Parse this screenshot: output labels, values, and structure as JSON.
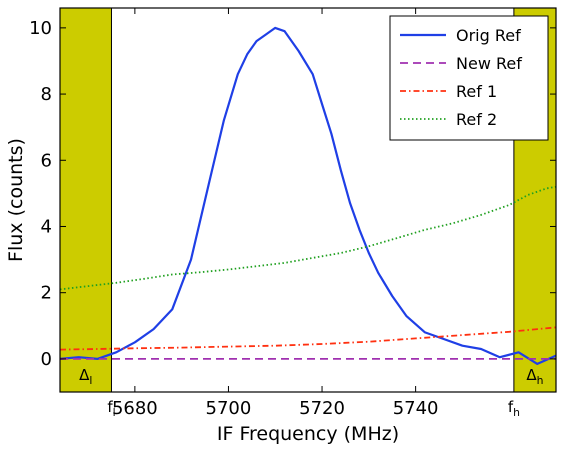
{
  "chart_data": {
    "type": "line",
    "title": "",
    "xlabel": "IF Frequency (MHz)",
    "ylabel": "Flux (counts)",
    "xlim": [
      5664,
      5770
    ],
    "ylim": [
      -1,
      10.6
    ],
    "x_ticks": [
      5680,
      5700,
      5720,
      5740
    ],
    "x_tick_labels": [
      "5680",
      "5700",
      "5720",
      "5740"
    ],
    "y_ticks": [
      0,
      2,
      4,
      6,
      8,
      10
    ],
    "y_tick_labels": [
      "0",
      "2",
      "4",
      "6",
      "8",
      "10"
    ],
    "grid": false,
    "legend_position": "top-right",
    "colors": {
      "band": "#cccc00",
      "orig_ref": "#1f3fe6",
      "new_ref": "#a030b0",
      "ref1": "#ff3010",
      "ref2": "#20a020"
    },
    "bands": [
      {
        "x0": 5664,
        "x1": 5675,
        "label_base": "Δ",
        "label_sub": "l"
      },
      {
        "x0": 5761,
        "x1": 5770,
        "label_base": "Δ",
        "label_sub": "h"
      }
    ],
    "markers": [
      {
        "x": 5675,
        "label_base": "f",
        "label_sub": "l"
      },
      {
        "x": 5761,
        "label_base": "f",
        "label_sub": "h"
      }
    ],
    "series": [
      {
        "name": "Orig Ref",
        "style": "solid",
        "x": [
          5664,
          5668,
          5672,
          5676,
          5680,
          5684,
          5688,
          5692,
          5696,
          5699,
          5702,
          5704,
          5706,
          5708,
          5710,
          5712,
          5715,
          5718,
          5720,
          5722,
          5724,
          5726,
          5728,
          5730,
          5732,
          5735,
          5738,
          5742,
          5746,
          5750,
          5754,
          5758,
          5762,
          5766,
          5770
        ],
        "y": [
          0.0,
          0.05,
          0.0,
          0.2,
          0.5,
          0.9,
          1.5,
          3.0,
          5.4,
          7.2,
          8.6,
          9.2,
          9.6,
          9.8,
          10.0,
          9.9,
          9.3,
          8.6,
          7.7,
          6.8,
          5.7,
          4.7,
          3.9,
          3.2,
          2.6,
          1.9,
          1.3,
          0.8,
          0.6,
          0.4,
          0.3,
          0.05,
          0.2,
          -0.15,
          0.1
        ]
      },
      {
        "name": "New Ref",
        "style": "dashed",
        "x": [
          5664,
          5770
        ],
        "y": [
          0.0,
          0.0
        ]
      },
      {
        "name": "Ref 1",
        "style": "dashdot",
        "x": [
          5664,
          5672,
          5680,
          5690,
          5700,
          5710,
          5720,
          5730,
          5740,
          5750,
          5760,
          5766,
          5770
        ],
        "y": [
          0.28,
          0.3,
          0.32,
          0.34,
          0.37,
          0.4,
          0.45,
          0.52,
          0.62,
          0.72,
          0.82,
          0.9,
          0.95
        ]
      },
      {
        "name": "Ref 2",
        "style": "dotted",
        "x": [
          5664,
          5670,
          5676,
          5682,
          5688,
          5694,
          5700,
          5706,
          5712,
          5718,
          5724,
          5730,
          5736,
          5742,
          5748,
          5754,
          5760,
          5764,
          5768,
          5770
        ],
        "y": [
          2.1,
          2.2,
          2.3,
          2.42,
          2.55,
          2.62,
          2.7,
          2.8,
          2.9,
          3.05,
          3.2,
          3.4,
          3.65,
          3.9,
          4.1,
          4.35,
          4.65,
          4.95,
          5.15,
          5.2
        ]
      }
    ]
  }
}
